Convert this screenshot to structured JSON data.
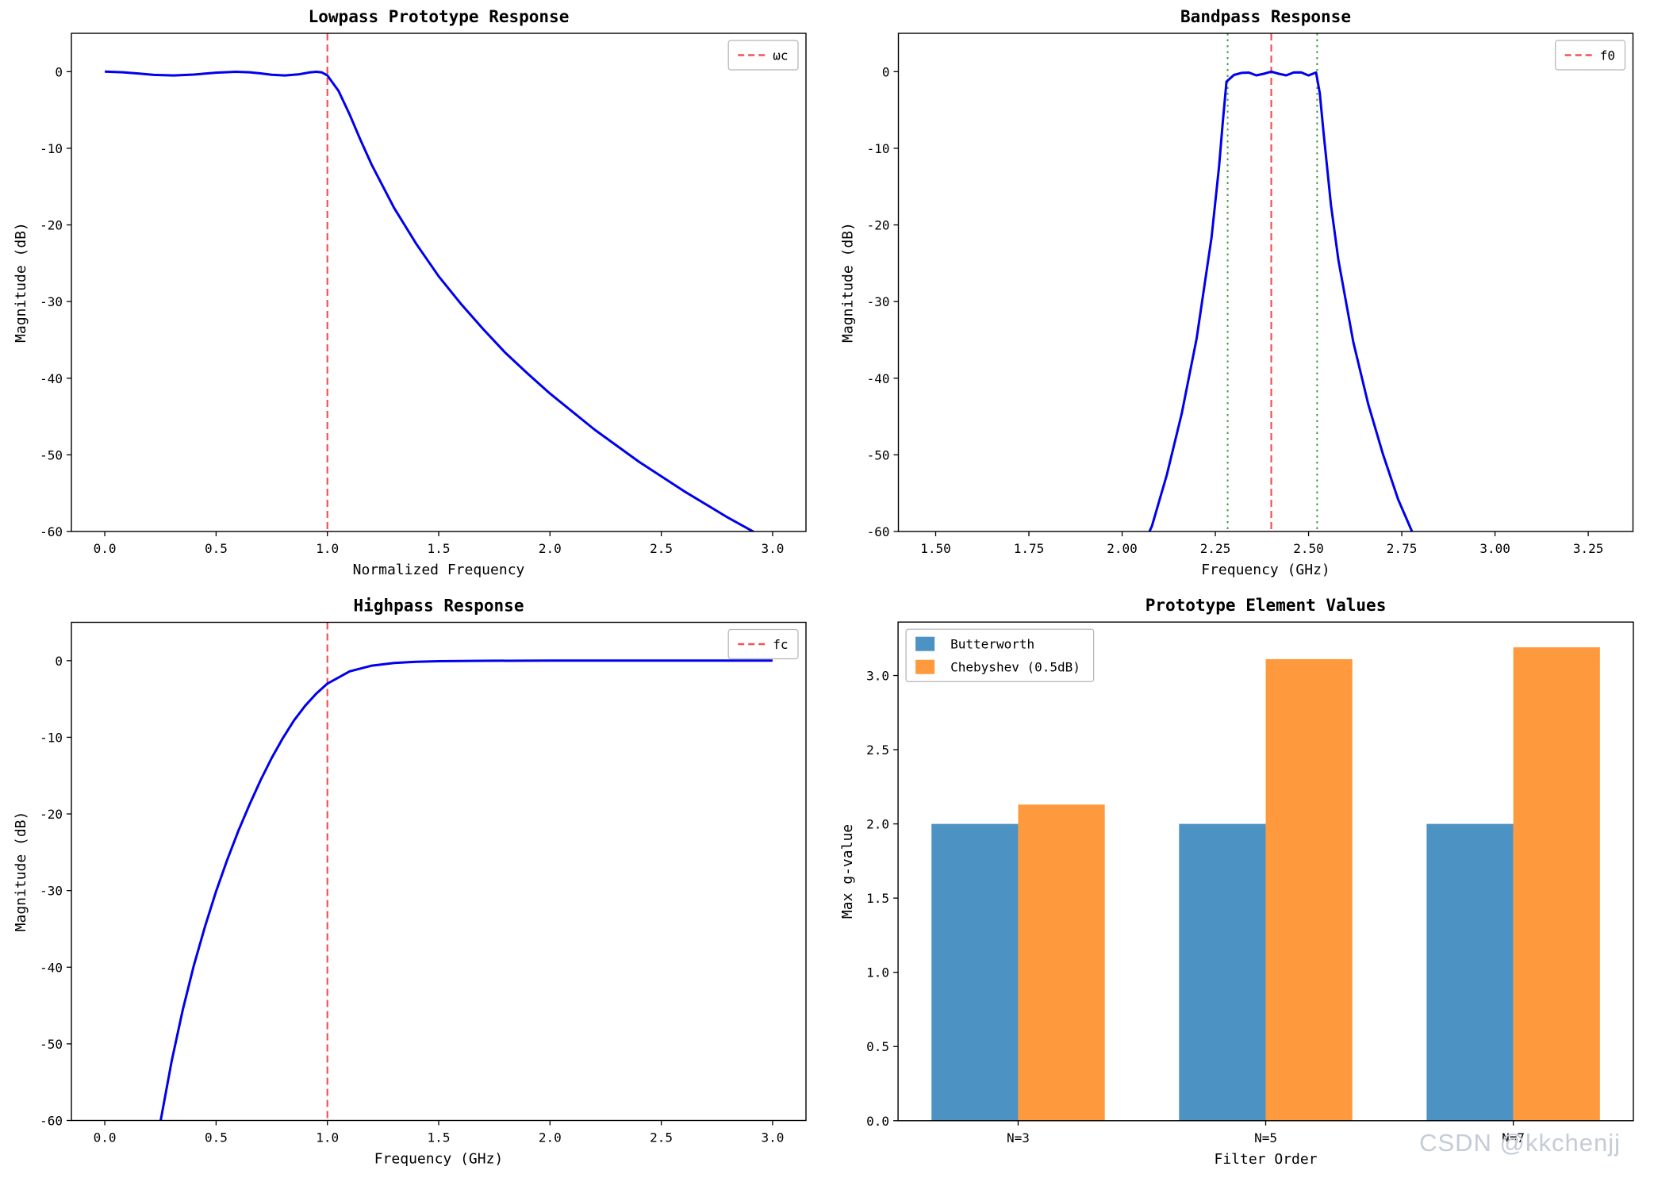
{
  "watermark": "CSDN @kkchenjj",
  "colors": {
    "line_blue": "#0000ee",
    "vline_red": "#ee4040",
    "vline_green": "#2f8f2f",
    "bar_blue": "#4c92c3",
    "bar_orange": "#ff993e",
    "spine": "#000000",
    "legend_border": "#b3b3b3"
  },
  "chart_data": [
    {
      "id": "lowpass-prototype",
      "type": "line",
      "title": "Lowpass Prototype Response",
      "xlabel": "Normalized Frequency",
      "ylabel": "Magnitude (dB)",
      "xlim": [
        -0.15,
        3.15
      ],
      "ylim": [
        -60,
        5
      ],
      "xticks": {
        "values": [
          0,
          0.5,
          1.0,
          1.5,
          2.0,
          2.5,
          3.0
        ],
        "labels": [
          "0.0",
          "0.5",
          "1.0",
          "1.5",
          "2.0",
          "2.5",
          "3.0"
        ]
      },
      "yticks": {
        "values": [
          0,
          -10,
          -20,
          -30,
          -40,
          -50,
          -60
        ],
        "labels": [
          "0",
          "-10",
          "-20",
          "-30",
          "-40",
          "-50",
          "-60"
        ]
      },
      "line": {
        "color": "#0000ee",
        "width": 3,
        "x": [
          0,
          0.08,
          0.155,
          0.22,
          0.309,
          0.4,
          0.5,
          0.588,
          0.65,
          0.7,
          0.75,
          0.809,
          0.87,
          0.92,
          0.951,
          0.975,
          1.0,
          1.05,
          1.1,
          1.15,
          1.2,
          1.3,
          1.4,
          1.5,
          1.6,
          1.7,
          1.8,
          1.9,
          2.0,
          2.2,
          2.4,
          2.6,
          2.8,
          2.9,
          3.0
        ],
        "y": [
          0,
          -0.08,
          -0.25,
          -0.42,
          -0.5,
          -0.38,
          -0.13,
          -0.02,
          -0.08,
          -0.23,
          -0.4,
          -0.5,
          -0.36,
          -0.1,
          -0.02,
          -0.1,
          -0.5,
          -2.5,
          -5.6,
          -9.0,
          -12.2,
          -17.8,
          -22.5,
          -26.7,
          -30.3,
          -33.6,
          -36.7,
          -39.4,
          -42.0,
          -46.7,
          -50.9,
          -54.7,
          -58.2,
          -59.8,
          -61.4
        ]
      },
      "vlines": [
        {
          "x": 1.0,
          "color": "#ee4040",
          "dash": "9,5",
          "width": 2.2
        }
      ],
      "legend": {
        "position": "top-right",
        "items": [
          {
            "label": "ωc",
            "marker": "dashed-line",
            "color": "#ee4040"
          }
        ]
      }
    },
    {
      "id": "bandpass",
      "type": "line",
      "title": "Bandpass Response",
      "xlabel": "Frequency (GHz)",
      "ylabel": "Magnitude (dB)",
      "xlim": [
        1.4,
        3.37
      ],
      "ylim": [
        -60,
        5
      ],
      "xticks": {
        "values": [
          1.5,
          1.75,
          2.0,
          2.25,
          2.5,
          2.75,
          3.0,
          3.25
        ],
        "labels": [
          "1.50",
          "1.75",
          "2.00",
          "2.25",
          "2.50",
          "2.75",
          "3.00",
          "3.25"
        ]
      },
      "yticks": {
        "values": [
          0,
          -10,
          -20,
          -30,
          -40,
          -50,
          -60
        ],
        "labels": [
          "0",
          "-10",
          "-20",
          "-30",
          "-40",
          "-50",
          "-60"
        ]
      },
      "line": {
        "color": "#0000ee",
        "width": 3,
        "x": [
          2.04,
          2.08,
          2.12,
          2.16,
          2.2,
          2.24,
          2.26,
          2.27,
          2.28,
          2.3,
          2.32,
          2.34,
          2.36,
          2.38,
          2.4,
          2.42,
          2.44,
          2.46,
          2.48,
          2.5,
          2.52,
          2.53,
          2.54,
          2.56,
          2.58,
          2.62,
          2.66,
          2.7,
          2.74,
          2.78
        ],
        "y": [
          -63.5,
          -59.3,
          -52.6,
          -44.6,
          -34.8,
          -21.6,
          -12.4,
          -6.6,
          -1.3,
          -0.43,
          -0.16,
          -0.12,
          -0.49,
          -0.28,
          0,
          -0.28,
          -0.49,
          -0.11,
          -0.09,
          -0.5,
          -0.11,
          -2.8,
          -7.9,
          -17.4,
          -24.6,
          -35.3,
          -43.4,
          -50.0,
          -55.8,
          -60.3
        ]
      },
      "vlines": [
        {
          "x": 2.283,
          "color": "#2f8f2f",
          "dash": "2.5,5",
          "width": 2
        },
        {
          "x": 2.4,
          "color": "#ee4040",
          "dash": "9,5",
          "width": 2.2
        },
        {
          "x": 2.523,
          "color": "#2f8f2f",
          "dash": "2.5,5",
          "width": 2
        }
      ],
      "legend": {
        "position": "top-right",
        "items": [
          {
            "label": "f0",
            "marker": "dashed-line",
            "color": "#ee4040"
          }
        ]
      }
    },
    {
      "id": "highpass",
      "type": "line",
      "title": "Highpass Response",
      "xlabel": "Frequency (GHz)",
      "ylabel": "Magnitude (dB)",
      "xlim": [
        -0.15,
        3.15
      ],
      "ylim": [
        -60,
        5
      ],
      "xticks": {
        "values": [
          0,
          0.5,
          1.0,
          1.5,
          2.0,
          2.5,
          3.0
        ],
        "labels": [
          "0.0",
          "0.5",
          "1.0",
          "1.5",
          "2.0",
          "2.5",
          "3.0"
        ]
      },
      "yticks": {
        "values": [
          0,
          -10,
          -20,
          -30,
          -40,
          -50,
          -60
        ],
        "labels": [
          "0",
          "-10",
          "-20",
          "-30",
          "-40",
          "-50",
          "-60"
        ]
      },
      "line": {
        "color": "#0000ee",
        "width": 3,
        "x": [
          0.25,
          0.3,
          0.35,
          0.4,
          0.45,
          0.5,
          0.55,
          0.6,
          0.65,
          0.7,
          0.75,
          0.8,
          0.85,
          0.9,
          0.95,
          1.0,
          1.1,
          1.2,
          1.3,
          1.4,
          1.5,
          1.7,
          2.0,
          2.5,
          3.0
        ],
        "y": [
          -60.2,
          -52.3,
          -45.6,
          -39.8,
          -34.7,
          -30.1,
          -26.0,
          -22.2,
          -18.8,
          -15.6,
          -12.7,
          -10.1,
          -7.8,
          -5.9,
          -4.3,
          -3.0,
          -1.4,
          -0.65,
          -0.3,
          -0.15,
          -0.07,
          -0.02,
          0,
          0,
          0
        ]
      },
      "vlines": [
        {
          "x": 1.0,
          "color": "#ee4040",
          "dash": "9,5",
          "width": 2.2
        }
      ],
      "legend": {
        "position": "top-right",
        "items": [
          {
            "label": "fc",
            "marker": "dashed-line",
            "color": "#ee4040"
          }
        ]
      }
    },
    {
      "id": "prototype-elements",
      "type": "bar",
      "title": "Prototype Element Values",
      "xlabel": "Filter Order",
      "ylabel": "Max g-value",
      "categories": [
        "N=3",
        "N=5",
        "N=7"
      ],
      "series": [
        {
          "name": "Butterworth",
          "color": "#4c92c3",
          "values": [
            2.0,
            2.0,
            2.0
          ]
        },
        {
          "name": "Chebyshev (0.5dB)",
          "color": "#ff993e",
          "values": [
            2.13,
            3.11,
            3.19
          ]
        }
      ],
      "bar_width": 0.35,
      "xlim": [
        -0.485,
        2.485
      ],
      "ylim": [
        0,
        3.36
      ],
      "yticks": {
        "values": [
          0,
          0.5,
          1.0,
          1.5,
          2.0,
          2.5,
          3.0
        ],
        "labels": [
          "0.0",
          "0.5",
          "1.0",
          "1.5",
          "2.0",
          "2.5",
          "3.0"
        ]
      },
      "legend": {
        "position": "top-left",
        "items": [
          {
            "label": "Butterworth",
            "marker": "patch",
            "color": "#4c92c3"
          },
          {
            "label": "Chebyshev (0.5dB)",
            "marker": "patch",
            "color": "#ff993e"
          }
        ]
      }
    }
  ]
}
